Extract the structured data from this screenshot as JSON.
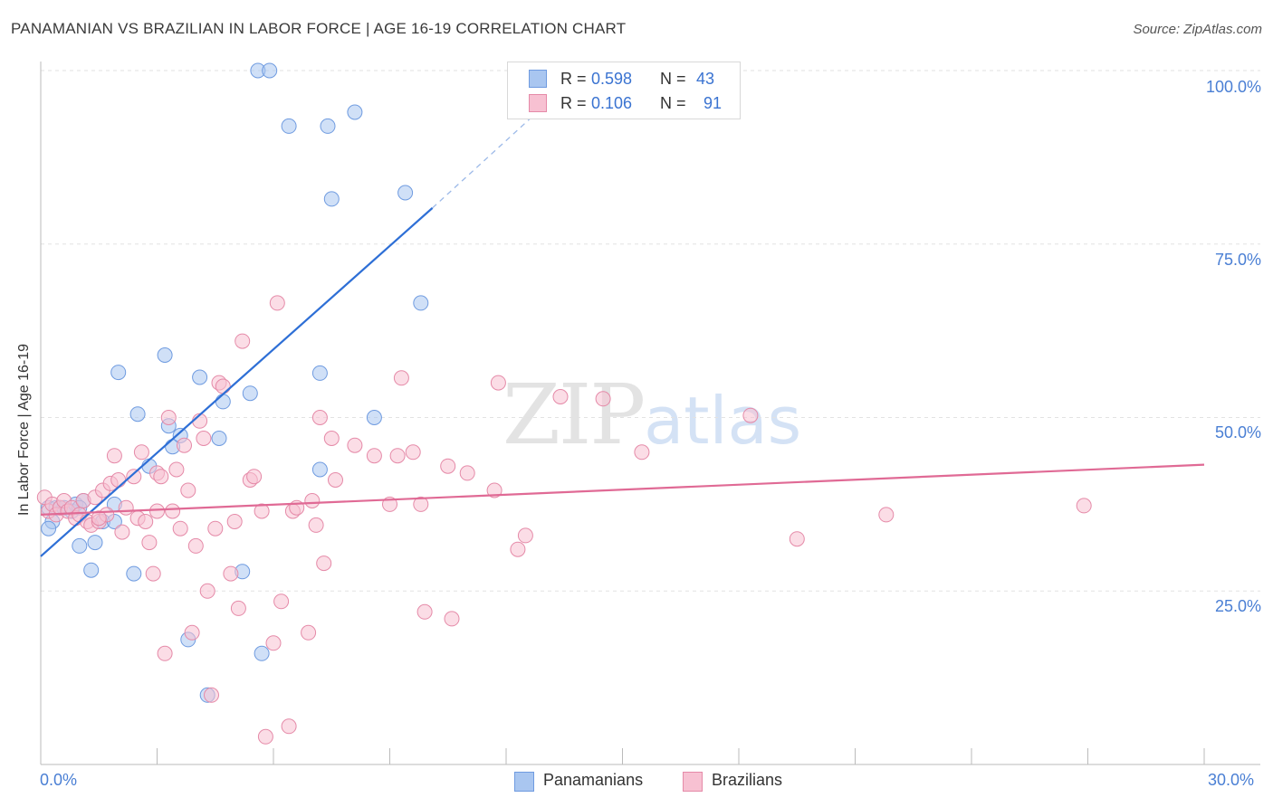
{
  "header": {
    "title": "PANAMANIAN VS BRAZILIAN IN LABOR FORCE | AGE 16-19 CORRELATION CHART",
    "source": "Source: ZipAtlas.com"
  },
  "watermark": {
    "zip": "ZIP",
    "atlas": "atlas"
  },
  "legend": {
    "rows": [
      {
        "r_label": "R =",
        "r_value": "0.598",
        "n_label": "N =",
        "n_value": "43",
        "color": "#a9c6f0",
        "border": "#6f9be0"
      },
      {
        "r_label": "R =",
        "r_value": "0.106",
        "n_label": "N =",
        "n_value": "91",
        "color": "#f7c1d2",
        "border": "#e58aa8"
      }
    ]
  },
  "bottom_legend": {
    "panamanians": "Panamanians",
    "brazilians": "Brazilians"
  },
  "chart_data": {
    "type": "scatter",
    "title": "PANAMANIAN VS BRAZILIAN IN LABOR FORCE | AGE 16-19 CORRELATION CHART",
    "xlabel": "",
    "ylabel": "In Labor Force | Age 16-19",
    "xlim": [
      0,
      30
    ],
    "ylim": [
      0,
      100
    ],
    "x_tick_labels": [
      "0.0%",
      "30.0%"
    ],
    "y_tick_labels": [
      "25.0%",
      "50.0%",
      "75.0%",
      "100.0%"
    ],
    "y_ticks": [
      25,
      50,
      75,
      100
    ],
    "grid": true,
    "legend_position": "top-center",
    "series": [
      {
        "name": "Panamanians",
        "color": "#6f9be0",
        "fill": "#a9c6f0",
        "R": 0.598,
        "N": 43,
        "trend": {
          "x1": 0,
          "y1": 30,
          "x2": 10.1,
          "y2": 80.2,
          "dash_to_x": 12.8,
          "dash_to_y": 94
        },
        "points": [
          [
            0.2,
            37
          ],
          [
            0.3,
            35
          ],
          [
            0.2,
            34
          ],
          [
            0.4,
            37
          ],
          [
            0.5,
            37
          ],
          [
            0.6,
            37
          ],
          [
            0.8,
            36.5
          ],
          [
            0.9,
            37.5
          ],
          [
            1.1,
            38
          ],
          [
            1.0,
            37
          ],
          [
            1.0,
            31.5
          ],
          [
            1.3,
            28
          ],
          [
            1.4,
            32
          ],
          [
            1.6,
            35
          ],
          [
            1.9,
            37.5
          ],
          [
            1.9,
            35
          ],
          [
            2.0,
            56.5
          ],
          [
            2.4,
            27.5
          ],
          [
            2.5,
            50.5
          ],
          [
            2.8,
            43
          ],
          [
            3.2,
            59
          ],
          [
            3.3,
            48.8
          ],
          [
            3.4,
            45.8
          ],
          [
            3.6,
            47.4
          ],
          [
            3.8,
            18
          ],
          [
            4.1,
            55.8
          ],
          [
            4.3,
            10
          ],
          [
            4.6,
            47
          ],
          [
            4.7,
            52.3
          ],
          [
            5.2,
            27.8
          ],
          [
            5.4,
            53.5
          ],
          [
            5.6,
            100
          ],
          [
            5.9,
            100
          ],
          [
            6.4,
            92
          ],
          [
            7.2,
            42.5
          ],
          [
            7.2,
            56.4
          ],
          [
            7.4,
            92
          ],
          [
            7.5,
            81.5
          ],
          [
            8.1,
            94
          ],
          [
            8.6,
            50
          ],
          [
            9.4,
            82.4
          ],
          [
            9.8,
            66.5
          ],
          [
            5.7,
            16
          ]
        ]
      },
      {
        "name": "Brazilians",
        "color": "#e58aa8",
        "fill": "#f7c1d2",
        "R": 0.106,
        "N": 91,
        "trend": {
          "x1": 0,
          "y1": 36,
          "x2": 30,
          "y2": 43.2
        },
        "points": [
          [
            0.1,
            38.5
          ],
          [
            0.2,
            36.5
          ],
          [
            0.3,
            37.5
          ],
          [
            0.4,
            36
          ],
          [
            0.5,
            37
          ],
          [
            0.6,
            38
          ],
          [
            0.7,
            36.5
          ],
          [
            0.8,
            37
          ],
          [
            0.9,
            35.5
          ],
          [
            1.0,
            36
          ],
          [
            1.1,
            38
          ],
          [
            1.2,
            35
          ],
          [
            1.3,
            34.5
          ],
          [
            1.4,
            38.5
          ],
          [
            1.5,
            35
          ],
          [
            1.6,
            39.5
          ],
          [
            1.7,
            36
          ],
          [
            1.8,
            40.5
          ],
          [
            1.9,
            44.5
          ],
          [
            2.0,
            41
          ],
          [
            2.1,
            33.5
          ],
          [
            2.2,
            37
          ],
          [
            2.4,
            41.5
          ],
          [
            2.5,
            35.5
          ],
          [
            2.6,
            45
          ],
          [
            2.7,
            35
          ],
          [
            2.8,
            32
          ],
          [
            2.9,
            27.5
          ],
          [
            3.0,
            42
          ],
          [
            3.1,
            41.5
          ],
          [
            3.2,
            16
          ],
          [
            3.3,
            50
          ],
          [
            3.4,
            36.5
          ],
          [
            3.5,
            42.5
          ],
          [
            3.6,
            34
          ],
          [
            3.7,
            46
          ],
          [
            3.8,
            39.5
          ],
          [
            3.9,
            19
          ],
          [
            4.0,
            31.5
          ],
          [
            4.1,
            49.5
          ],
          [
            4.2,
            47
          ],
          [
            4.3,
            25
          ],
          [
            4.4,
            10
          ],
          [
            4.5,
            34
          ],
          [
            4.6,
            55
          ],
          [
            4.7,
            54.5
          ],
          [
            4.9,
            27.5
          ],
          [
            5.0,
            35
          ],
          [
            5.1,
            22.5
          ],
          [
            5.2,
            61
          ],
          [
            5.4,
            41
          ],
          [
            5.5,
            41.5
          ],
          [
            5.7,
            36.5
          ],
          [
            5.8,
            4
          ],
          [
            6.0,
            17.5
          ],
          [
            6.1,
            66.5
          ],
          [
            6.2,
            23.5
          ],
          [
            6.4,
            5.5
          ],
          [
            6.5,
            36.5
          ],
          [
            6.6,
            37
          ],
          [
            6.9,
            19
          ],
          [
            7.0,
            38
          ],
          [
            7.1,
            34.5
          ],
          [
            7.2,
            50
          ],
          [
            7.3,
            29
          ],
          [
            7.5,
            47
          ],
          [
            7.6,
            41
          ],
          [
            8.1,
            46
          ],
          [
            8.6,
            44.5
          ],
          [
            9.0,
            37.5
          ],
          [
            9.2,
            44.5
          ],
          [
            9.3,
            55.7
          ],
          [
            9.6,
            45
          ],
          [
            9.8,
            37.5
          ],
          [
            9.9,
            22
          ],
          [
            10.5,
            43
          ],
          [
            10.6,
            21
          ],
          [
            11.0,
            42
          ],
          [
            11.7,
            39.5
          ],
          [
            11.8,
            55
          ],
          [
            12.3,
            31
          ],
          [
            12.5,
            33
          ],
          [
            13.4,
            53
          ],
          [
            14.5,
            52.7
          ],
          [
            15.5,
            45
          ],
          [
            18.3,
            50.3
          ],
          [
            19.5,
            32.5
          ],
          [
            21.8,
            36
          ],
          [
            26.9,
            37.3
          ],
          [
            3.0,
            36.5
          ],
          [
            1.5,
            35.5
          ]
        ]
      }
    ]
  }
}
